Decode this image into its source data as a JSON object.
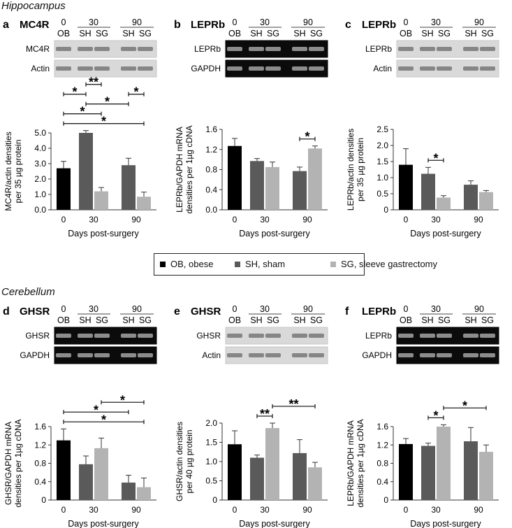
{
  "sections": {
    "top": "Hippocampus",
    "bottom": "Cerebellum"
  },
  "legend": {
    "ob": {
      "label": "OB, obese",
      "color": "#000000"
    },
    "sh": {
      "label": "SH, sham",
      "color": "#5a5a5a"
    },
    "sg": {
      "label": "SG, sleeve gastrectomy",
      "color": "#b3b3b3"
    }
  },
  "lane_header": {
    "top_labels": [
      "0",
      "30",
      "90"
    ],
    "bottom_labels": [
      "OB",
      "SH",
      "SG",
      "SH",
      "SG"
    ]
  },
  "chart_data": [
    {
      "panel": "a",
      "title": "MC4R",
      "type": "bar",
      "blot": "western",
      "blot_rows": [
        "MC4R",
        "Actin"
      ],
      "ylabel": "MC4R/actin densities per 35 µg protein",
      "xlabel": "Days post-surgery",
      "ylim": [
        0,
        5.0
      ],
      "yticks": [
        "0.0",
        "1.0",
        "2.0",
        "3.0",
        "4.0",
        "5.0"
      ],
      "categories": [
        "0",
        "30",
        "90"
      ],
      "bars": [
        {
          "day": "0",
          "group": "OB",
          "value": 2.7,
          "err": 0.45
        },
        {
          "day": "30",
          "group": "SH",
          "value": 5.0,
          "err": 0.15
        },
        {
          "day": "30",
          "group": "SG",
          "value": 1.2,
          "err": 0.25
        },
        {
          "day": "90",
          "group": "SH",
          "value": 2.9,
          "err": 0.45
        },
        {
          "day": "90",
          "group": "SG",
          "value": 0.85,
          "err": 0.3
        }
      ],
      "significance": [
        {
          "from": 0,
          "to": 4,
          "label": "*"
        },
        {
          "from": 0,
          "to": 2,
          "label": "*"
        },
        {
          "from": 1,
          "to": 3,
          "label": "*"
        },
        {
          "from": 0,
          "to": 1,
          "label": "*"
        },
        {
          "from": 1,
          "to": 2,
          "label": "**"
        },
        {
          "from": 3,
          "to": 4,
          "label": "*"
        }
      ]
    },
    {
      "panel": "b",
      "title": "LEPRb",
      "type": "bar",
      "blot": "pcr",
      "blot_rows": [
        "LEPRb",
        "GAPDH"
      ],
      "ylabel": "LEPRb/GAPDH mRNA densities per 1µg cDNA",
      "xlabel": "Days post-surgery",
      "ylim": [
        0,
        1.6
      ],
      "yticks": [
        "0.0",
        "0.4",
        "0.8",
        "1.2",
        "1.6"
      ],
      "categories": [
        "0",
        "30",
        "90"
      ],
      "bars": [
        {
          "day": "0",
          "group": "OB",
          "value": 1.27,
          "err": 0.15
        },
        {
          "day": "30",
          "group": "SH",
          "value": 0.97,
          "err": 0.05
        },
        {
          "day": "30",
          "group": "SG",
          "value": 0.85,
          "err": 0.1
        },
        {
          "day": "90",
          "group": "SH",
          "value": 0.77,
          "err": 0.08
        },
        {
          "day": "90",
          "group": "SG",
          "value": 1.22,
          "err": 0.05
        }
      ],
      "significance": [
        {
          "from": 3,
          "to": 4,
          "label": "*"
        }
      ]
    },
    {
      "panel": "c",
      "title": "LEPRb",
      "type": "bar",
      "blot": "western",
      "blot_rows": [
        "LEPRb",
        "Actin"
      ],
      "ylabel": "LEPRb/actin densities per 35 µg protein",
      "xlabel": "Days post-surgery",
      "ylim": [
        0,
        2.5
      ],
      "yticks": [
        "0",
        "0.5",
        "1.0",
        "1.5",
        "2.0",
        "2.5"
      ],
      "categories": [
        "0",
        "30",
        "90"
      ],
      "bars": [
        {
          "day": "0",
          "group": "OB",
          "value": 1.4,
          "err": 0.5
        },
        {
          "day": "30",
          "group": "SH",
          "value": 1.12,
          "err": 0.2
        },
        {
          "day": "30",
          "group": "SG",
          "value": 0.38,
          "err": 0.06
        },
        {
          "day": "90",
          "group": "SH",
          "value": 0.78,
          "err": 0.12
        },
        {
          "day": "90",
          "group": "SG",
          "value": 0.55,
          "err": 0.05
        }
      ],
      "significance": [
        {
          "from": 1,
          "to": 2,
          "label": "*"
        }
      ]
    },
    {
      "panel": "d",
      "title": "GHSR",
      "type": "bar",
      "blot": "pcr",
      "blot_rows": [
        "GHSR",
        "GAPDH"
      ],
      "ylabel": "GHSR/GAPDH mRNA densities per 1µg cDNA",
      "xlabel": "Days post-surgery",
      "ylim": [
        0,
        1.6
      ],
      "yticks": [
        "0",
        "0.4",
        "0.8",
        "1.2",
        "1.6"
      ],
      "categories": [
        "0",
        "30",
        "90"
      ],
      "bars": [
        {
          "day": "0",
          "group": "OB",
          "value": 1.3,
          "err": 0.25
        },
        {
          "day": "30",
          "group": "SH",
          "value": 0.78,
          "err": 0.18
        },
        {
          "day": "30",
          "group": "SG",
          "value": 1.13,
          "err": 0.22
        },
        {
          "day": "90",
          "group": "SH",
          "value": 0.38,
          "err": 0.16
        },
        {
          "day": "90",
          "group": "SG",
          "value": 0.28,
          "err": 0.2
        }
      ],
      "significance": [
        {
          "from": 0,
          "to": 4,
          "label": "*"
        },
        {
          "from": 0,
          "to": 3,
          "label": "*"
        },
        {
          "from": 2,
          "to": 4,
          "label": "*"
        }
      ]
    },
    {
      "panel": "e",
      "title": "GHSR",
      "type": "bar",
      "blot": "western",
      "blot_rows": [
        "GHSR",
        "Actin"
      ],
      "ylabel": "GHSR/actin densities per 40 µg protein",
      "xlabel": "Days post-surgery",
      "ylim": [
        0,
        2.0
      ],
      "yticks": [
        "0",
        "0.5",
        "1.0",
        "1.5",
        "2.0"
      ],
      "categories": [
        "0",
        "30",
        "90"
      ],
      "bars": [
        {
          "day": "0",
          "group": "OB",
          "value": 1.45,
          "err": 0.35
        },
        {
          "day": "30",
          "group": "SH",
          "value": 1.1,
          "err": 0.07
        },
        {
          "day": "30",
          "group": "SG",
          "value": 1.87,
          "err": 0.13
        },
        {
          "day": "90",
          "group": "SH",
          "value": 1.22,
          "err": 0.35
        },
        {
          "day": "90",
          "group": "SG",
          "value": 0.85,
          "err": 0.13
        }
      ],
      "significance": [
        {
          "from": 1,
          "to": 2,
          "label": "**"
        },
        {
          "from": 2,
          "to": 4,
          "label": "**"
        }
      ]
    },
    {
      "panel": "f",
      "title": "LEPRb",
      "type": "bar",
      "blot": "pcr",
      "blot_rows": [
        "LEPRb",
        "GAPDH"
      ],
      "ylabel": "LEPRb/GAPDH mRNA densities per 1µg cDNA",
      "xlabel": "Days post-surgery",
      "ylim": [
        0,
        1.6
      ],
      "yticks": [
        "0",
        "0.4",
        "0.8",
        "1.2",
        "1.6"
      ],
      "categories": [
        "0",
        "30",
        "90"
      ],
      "bars": [
        {
          "day": "0",
          "group": "OB",
          "value": 1.22,
          "err": 0.12
        },
        {
          "day": "30",
          "group": "SH",
          "value": 1.18,
          "err": 0.06
        },
        {
          "day": "30",
          "group": "SG",
          "value": 1.6,
          "err": 0.04
        },
        {
          "day": "90",
          "group": "SH",
          "value": 1.28,
          "err": 0.3
        },
        {
          "day": "90",
          "group": "SG",
          "value": 1.05,
          "err": 0.15
        }
      ],
      "significance": [
        {
          "from": 1,
          "to": 2,
          "label": "*"
        },
        {
          "from": 2,
          "to": 4,
          "label": "*"
        }
      ]
    }
  ]
}
